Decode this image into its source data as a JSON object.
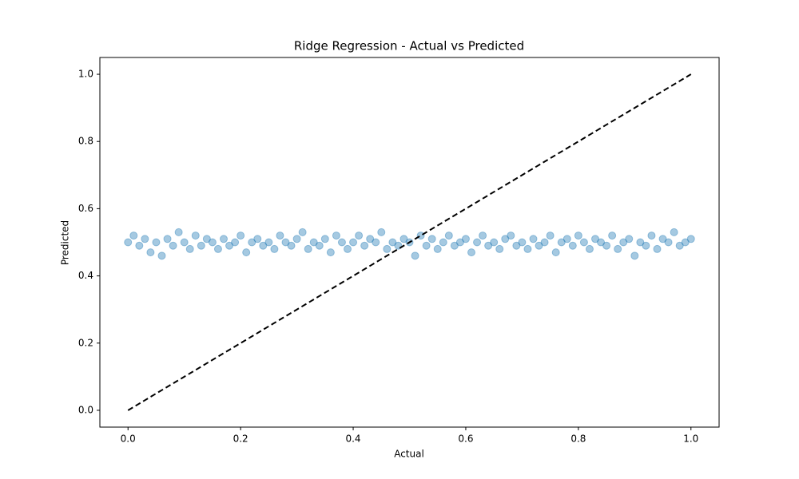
{
  "chart_data": {
    "type": "scatter",
    "title": "Ridge Regression - Actual vs Predicted",
    "xlabel": "Actual",
    "ylabel": "Predicted",
    "xlim": [
      -0.05,
      1.05
    ],
    "ylim": [
      -0.05,
      1.05
    ],
    "xticks": [
      {
        "value": 0,
        "label": "0.0"
      },
      0.2,
      0.4,
      0.6,
      0.8,
      {
        "value": 1,
        "label": "1.0"
      }
    ],
    "yticks": [
      {
        "value": 0,
        "label": "0.0"
      },
      0.2,
      0.4,
      0.6,
      0.8,
      {
        "value": 1,
        "label": "1.0"
      }
    ],
    "grid": false,
    "series": [
      {
        "type": "scatter",
        "color": "#1f77b4",
        "alpha": 0.4,
        "x": [
          0.0,
          0.01,
          0.02,
          0.03,
          0.04,
          0.05,
          0.06,
          0.07,
          0.08,
          0.09,
          0.1,
          0.11,
          0.12,
          0.13,
          0.14,
          0.15,
          0.16,
          0.17,
          0.18,
          0.19,
          0.2,
          0.21,
          0.22,
          0.23,
          0.24,
          0.25,
          0.26,
          0.27,
          0.28,
          0.29,
          0.3,
          0.31,
          0.32,
          0.33,
          0.34,
          0.35,
          0.36,
          0.37,
          0.38,
          0.39,
          0.4,
          0.41,
          0.42,
          0.43,
          0.44,
          0.45,
          0.46,
          0.47,
          0.48,
          0.49,
          0.5,
          0.51,
          0.52,
          0.53,
          0.54,
          0.55,
          0.56,
          0.57,
          0.58,
          0.59,
          0.6,
          0.61,
          0.62,
          0.63,
          0.64,
          0.65,
          0.66,
          0.67,
          0.68,
          0.69,
          0.7,
          0.71,
          0.72,
          0.73,
          0.74,
          0.75,
          0.76,
          0.77,
          0.78,
          0.79,
          0.8,
          0.81,
          0.82,
          0.83,
          0.84,
          0.85,
          0.86,
          0.87,
          0.88,
          0.89,
          0.9,
          0.91,
          0.92,
          0.93,
          0.94,
          0.95,
          0.96,
          0.97,
          0.98,
          0.99,
          1.0
        ],
        "values": [
          0.5,
          0.52,
          0.49,
          0.51,
          0.47,
          0.5,
          0.46,
          0.51,
          0.49,
          0.53,
          0.5,
          0.48,
          0.52,
          0.49,
          0.51,
          0.5,
          0.48,
          0.51,
          0.49,
          0.5,
          0.52,
          0.47,
          0.5,
          0.51,
          0.49,
          0.5,
          0.48,
          0.52,
          0.5,
          0.49,
          0.51,
          0.53,
          0.48,
          0.5,
          0.49,
          0.51,
          0.47,
          0.52,
          0.5,
          0.48,
          0.5,
          0.52,
          0.49,
          0.51,
          0.5,
          0.53,
          0.48,
          0.5,
          0.49,
          0.51,
          0.5,
          0.46,
          0.52,
          0.49,
          0.51,
          0.48,
          0.5,
          0.52,
          0.49,
          0.5,
          0.51,
          0.47,
          0.5,
          0.52,
          0.49,
          0.5,
          0.48,
          0.51,
          0.52,
          0.49,
          0.5,
          0.48,
          0.51,
          0.49,
          0.5,
          0.52,
          0.47,
          0.5,
          0.51,
          0.49,
          0.52,
          0.5,
          0.48,
          0.51,
          0.5,
          0.49,
          0.52,
          0.48,
          0.5,
          0.51,
          0.46,
          0.5,
          0.49,
          0.52,
          0.48,
          0.51,
          0.5,
          0.53,
          0.49,
          0.5,
          0.51
        ]
      },
      {
        "type": "line",
        "color": "#000000",
        "dashed": true,
        "x": [
          0,
          1
        ],
        "values": [
          0,
          1
        ]
      }
    ]
  }
}
